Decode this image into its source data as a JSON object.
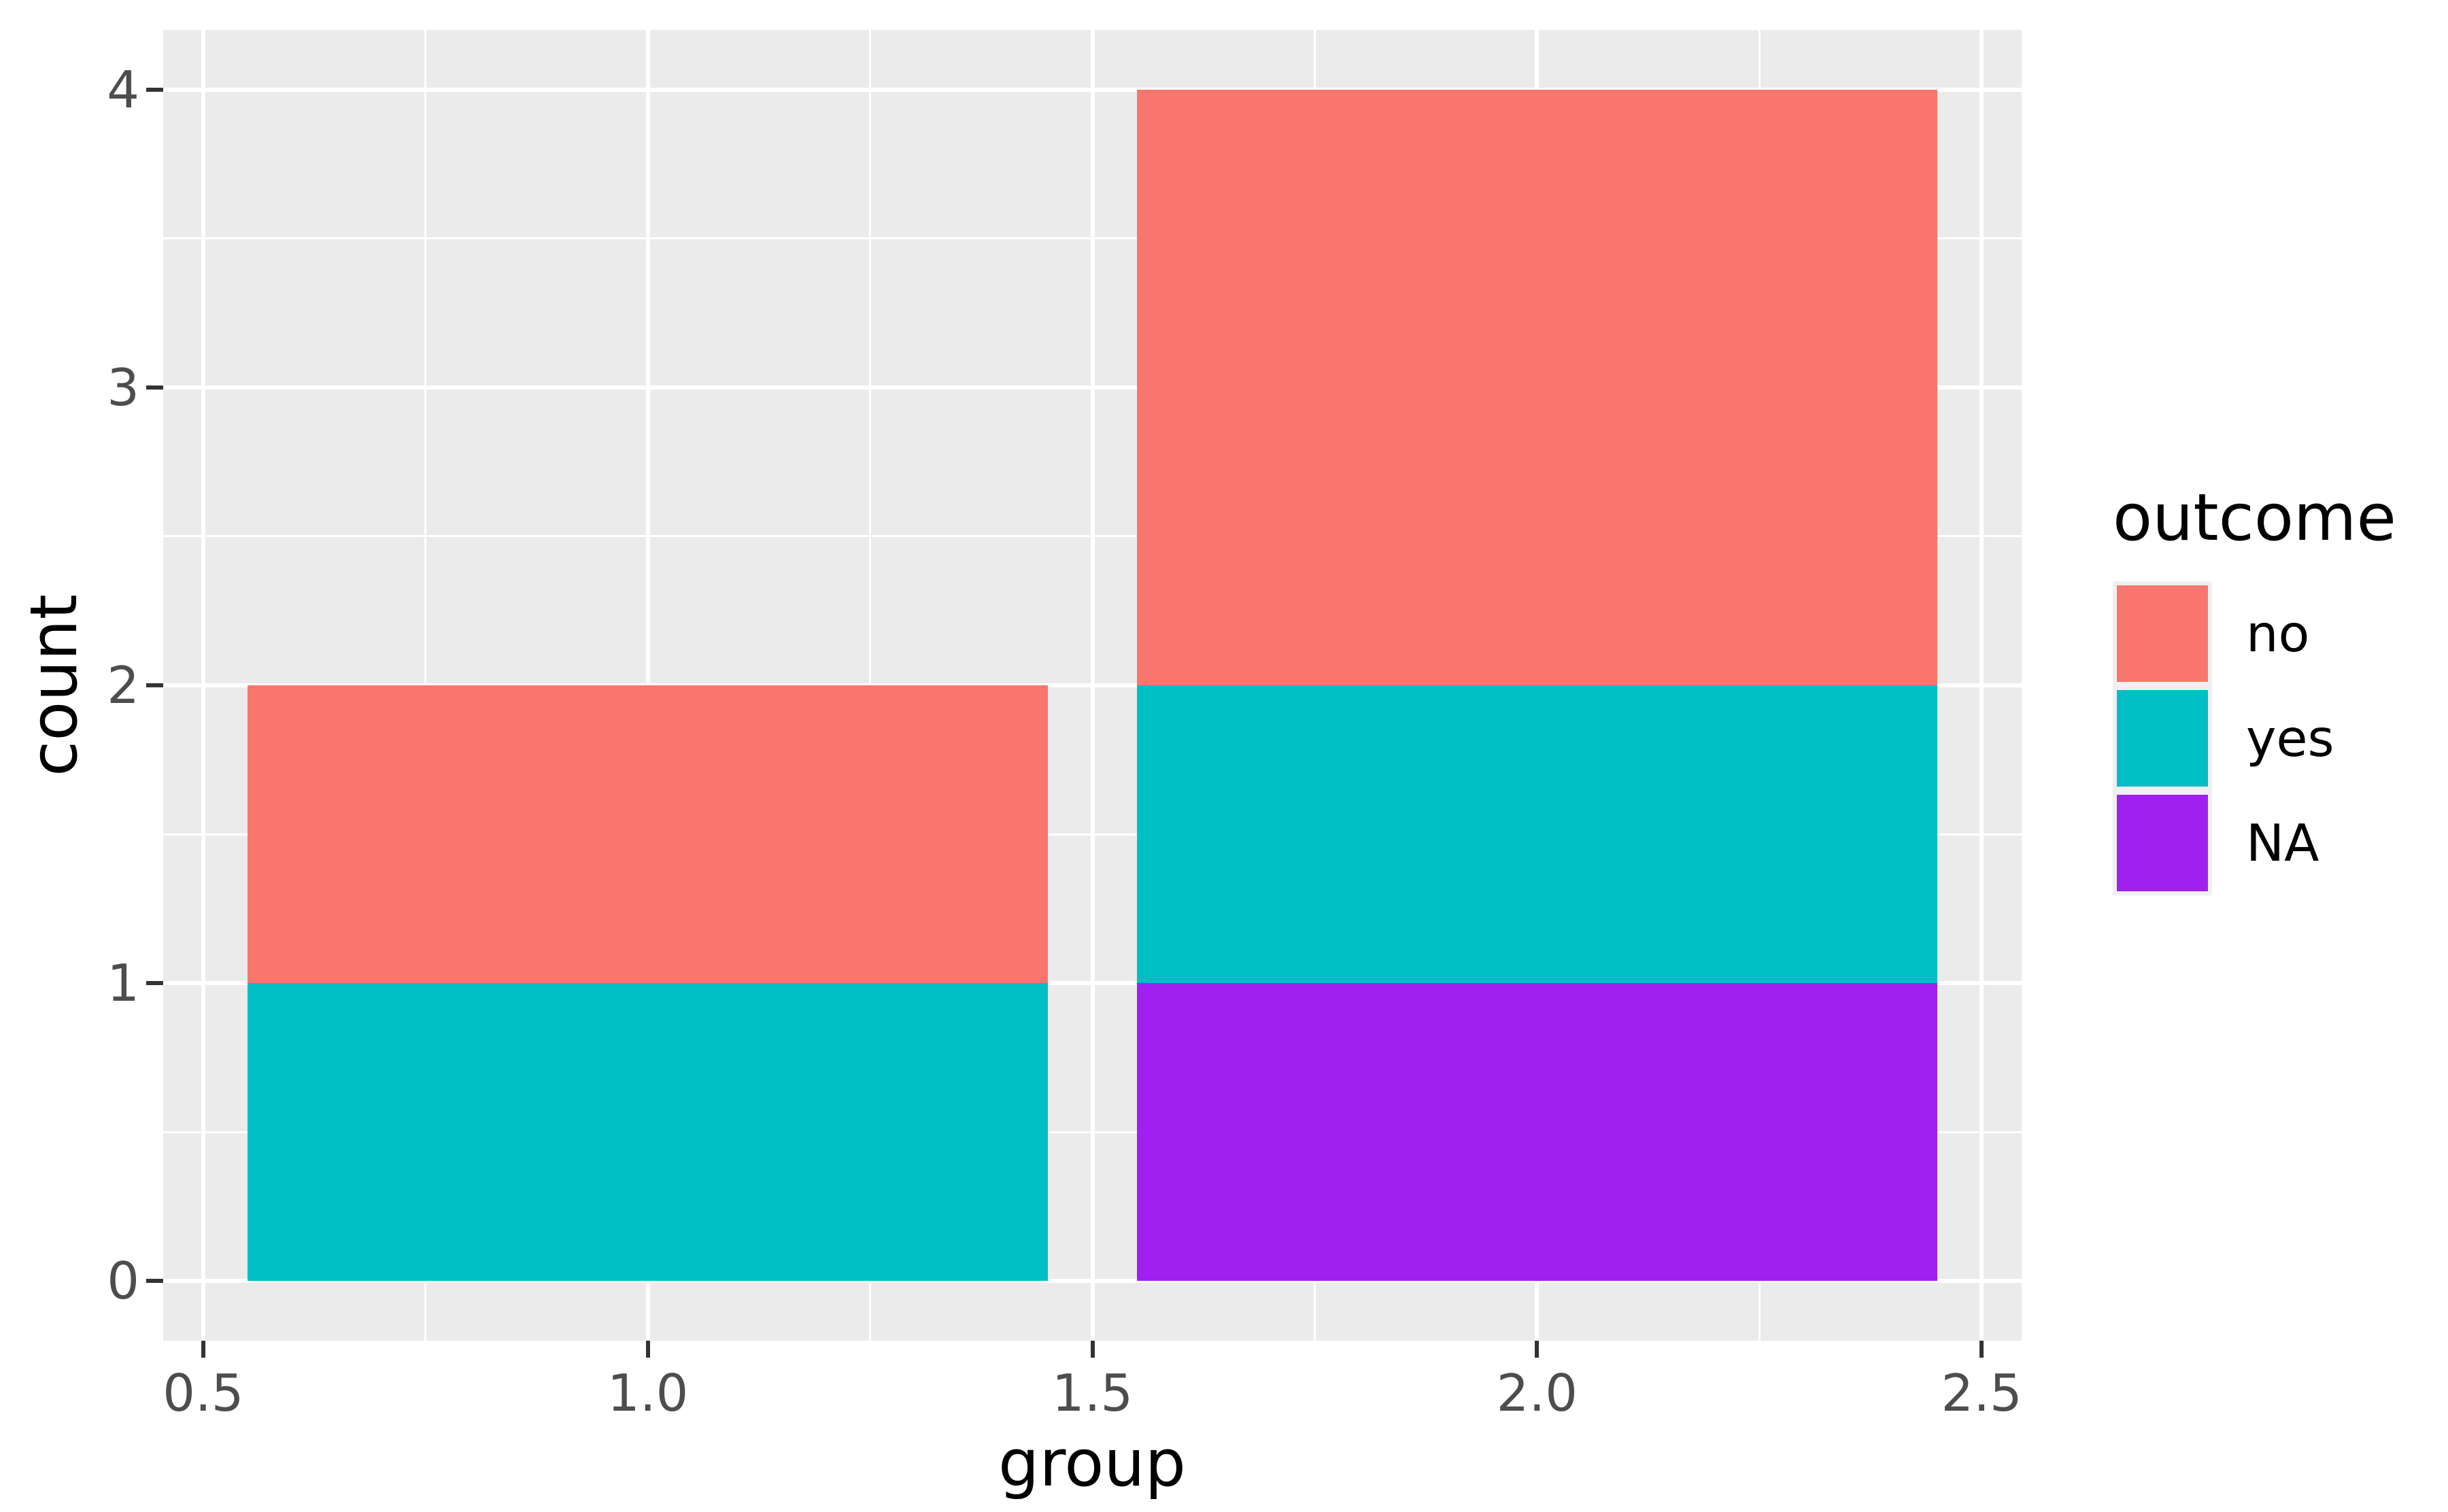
{
  "chart_data": {
    "type": "bar",
    "stacked": true,
    "title": "",
    "xlabel": "group",
    "ylabel": "count",
    "x_domain": [
      0.455,
      2.545
    ],
    "y_domain": [
      -0.2,
      4.2
    ],
    "bar_width": 0.9,
    "x_ticks": {
      "values": [
        0.5,
        1.0,
        1.5,
        2.0,
        2.5
      ],
      "labels": [
        "0.5",
        "1.0",
        "1.5",
        "2.0",
        "2.5"
      ]
    },
    "x_minor": [
      0.75,
      1.25,
      1.75,
      2.25
    ],
    "y_ticks": {
      "values": [
        0,
        1,
        2,
        3,
        4
      ],
      "labels": [
        "0",
        "1",
        "2",
        "3",
        "4"
      ]
    },
    "y_minor": [
      0.5,
      1.5,
      2.5,
      3.5
    ],
    "bars": [
      {
        "x": 1,
        "segments": [
          {
            "outcome": "yes",
            "value": 1
          },
          {
            "outcome": "no",
            "value": 1
          }
        ]
      },
      {
        "x": 2,
        "segments": [
          {
            "outcome": "NA",
            "value": 1
          },
          {
            "outcome": "yes",
            "value": 1
          },
          {
            "outcome": "no",
            "value": 2
          }
        ]
      }
    ],
    "colors": {
      "no": "#F8766D",
      "yes": "#00BFC4",
      "NA": "#A020F0"
    },
    "legend": {
      "title": "outcome",
      "entries": [
        {
          "label": "no",
          "color": "#F8766D"
        },
        {
          "label": "yes",
          "color": "#00BFC4"
        },
        {
          "label": "NA",
          "color": "#A020F0"
        }
      ]
    },
    "theme": {
      "panel_bg": "#EBEBEB",
      "grid_color": "#FFFFFF",
      "tick_color": "#333333",
      "tick_label_color": "#4D4D4D",
      "title_color": "#000000",
      "legend_key_bg": "#F0F0F0"
    },
    "grid": true,
    "legend_position": "right"
  }
}
